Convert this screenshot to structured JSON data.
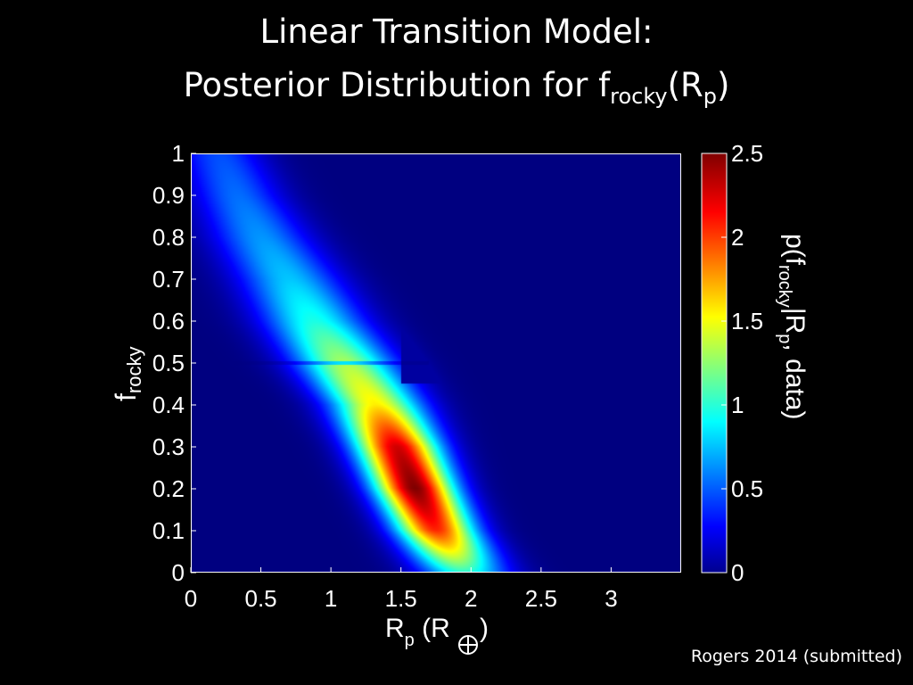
{
  "title": {
    "line1": "Linear Transition Model:",
    "line2_main": "Posterior Distribution for f",
    "line2_sub": "rocky",
    "line2_paren_open": "(R",
    "line2_sub2": "p",
    "line2_paren_close": ")"
  },
  "credit": "Rogers 2014 (submitted)",
  "chart_data": {
    "type": "heatmap",
    "title": "Linear Transition Model: Posterior Distribution for frocky(Rp)",
    "xlabel": "Rp (R⊕)",
    "ylabel": "frocky",
    "colorbar_label": "p(frocky|Rp, data)",
    "xlim": [
      0,
      3.5
    ],
    "ylim": [
      0,
      1
    ],
    "clim": [
      0,
      2.5
    ],
    "x_ticks": [
      0,
      0.5,
      1,
      1.5,
      2,
      2.5,
      3
    ],
    "x_tick_labels": [
      "0",
      "0.5",
      "1",
      "1.5",
      "2",
      "2.5",
      "3"
    ],
    "y_ticks": [
      0,
      0.1,
      0.2,
      0.3,
      0.4,
      0.5,
      0.6,
      0.7,
      0.8,
      0.9,
      1
    ],
    "y_tick_labels": [
      "0",
      "0.1",
      "0.2",
      "0.3",
      "0.4",
      "0.5",
      "0.6",
      "0.7",
      "0.8",
      "0.9",
      "1"
    ],
    "colorbar_ticks": [
      0,
      0.5,
      1,
      1.5,
      2,
      2.5
    ],
    "colorbar_tick_labels": [
      "0",
      "0.5",
      "1",
      "1.5",
      "2",
      "2.5"
    ],
    "colormap": "jet",
    "peak": {
      "x": 1.65,
      "y": 0.22,
      "value": 2.5
    },
    "density_ridge": {
      "f_values": [
        0.0,
        0.1,
        0.2,
        0.3,
        0.4,
        0.5,
        0.6,
        0.7,
        0.8,
        0.9,
        1.0
      ],
      "rp_center": [
        1.95,
        1.75,
        1.6,
        1.47,
        1.32,
        1.1,
        0.88,
        0.7,
        0.5,
        0.33,
        0.2
      ],
      "rp_width": [
        0.22,
        0.2,
        0.2,
        0.21,
        0.23,
        0.25,
        0.26,
        0.26,
        0.25,
        0.23,
        0.22
      ],
      "density": [
        1.05,
        2.1,
        2.5,
        2.3,
        1.6,
        1.35,
        1.0,
        0.8,
        0.68,
        0.58,
        0.5
      ]
    },
    "cutoff_rp": 1.5,
    "cutoff_density_beyond": 0.08
  }
}
